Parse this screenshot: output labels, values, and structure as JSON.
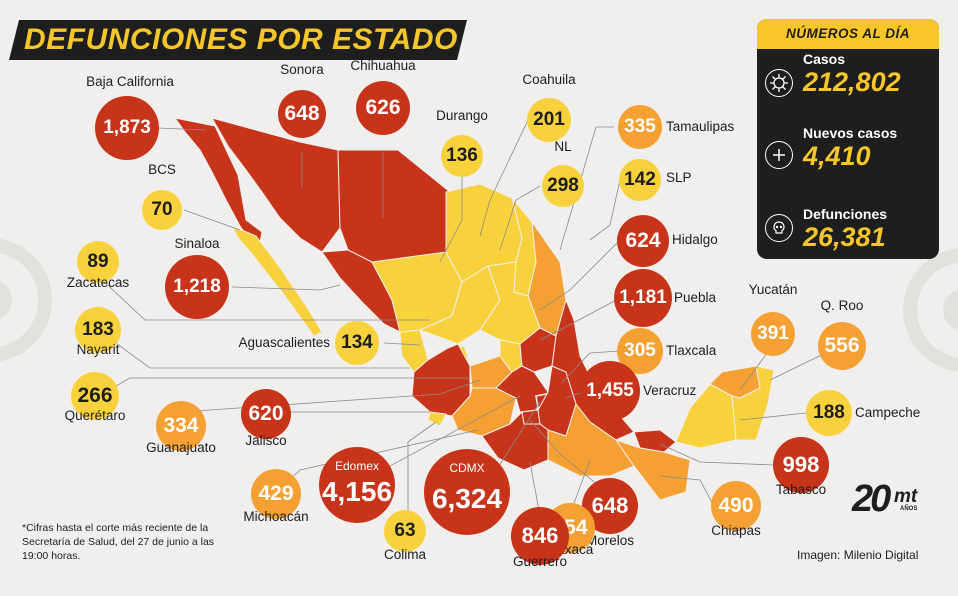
{
  "title": "DEFUNCIONES POR ESTADO",
  "colors": {
    "dark_red": "#c8341a",
    "orange": "#f5a033",
    "yellow": "#f8d23c",
    "panel_bg": "#1e1e1e",
    "accent": "#f7c62b"
  },
  "panel": {
    "header": "NÚMEROS AL DÍA",
    "stats": [
      {
        "label": "Casos",
        "value": "212,802",
        "icon": "virus-icon"
      },
      {
        "label": "Nuevos casos",
        "value": "4,410",
        "icon": "plus-icon"
      },
      {
        "label": "Defunciones",
        "value": "26,381",
        "icon": "skull-icon"
      }
    ]
  },
  "states": [
    {
      "name": "Baja California",
      "value": "1,873",
      "level": "dark_red"
    },
    {
      "name": "Sonora",
      "value": "648",
      "level": "dark_red"
    },
    {
      "name": "Chihuahua",
      "value": "626",
      "level": "dark_red"
    },
    {
      "name": "Coahuila",
      "value": "201",
      "level": "yellow"
    },
    {
      "name": "Tamaulipas",
      "value": "335",
      "level": "orange"
    },
    {
      "name": "Durango",
      "value": "136",
      "level": "yellow"
    },
    {
      "name": "NL",
      "value": "298",
      "level": "yellow"
    },
    {
      "name": "SLP",
      "value": "142",
      "level": "yellow"
    },
    {
      "name": "BCS",
      "value": "70",
      "level": "yellow"
    },
    {
      "name": "Hidalgo",
      "value": "624",
      "level": "dark_red"
    },
    {
      "name": "Sinaloa",
      "value": "1,218",
      "level": "dark_red"
    },
    {
      "name": "Zacatecas",
      "value": "89",
      "level": "yellow"
    },
    {
      "name": "Puebla",
      "value": "1,181",
      "level": "dark_red"
    },
    {
      "name": "Yucatán",
      "value": "391",
      "level": "orange"
    },
    {
      "name": "Q. Roo",
      "value": "556",
      "level": "orange"
    },
    {
      "name": "Nayarit",
      "value": "183",
      "level": "yellow"
    },
    {
      "name": "Aguascalientes",
      "value": "134",
      "level": "yellow"
    },
    {
      "name": "Tlaxcala",
      "value": "305",
      "level": "orange"
    },
    {
      "name": "Querétaro",
      "value": "266",
      "level": "yellow"
    },
    {
      "name": "Veracruz",
      "value": "1,455",
      "level": "dark_red"
    },
    {
      "name": "Campeche",
      "value": "188",
      "level": "yellow"
    },
    {
      "name": "Guanajuato",
      "value": "334",
      "level": "orange"
    },
    {
      "name": "Jalisco",
      "value": "620",
      "level": "dark_red"
    },
    {
      "name": "Tabasco",
      "value": "998",
      "level": "dark_red"
    },
    {
      "name": "Edomex",
      "value": "4,156",
      "level": "dark_red"
    },
    {
      "name": "CDMX",
      "value": "6,324",
      "level": "dark_red"
    },
    {
      "name": "Michoacán",
      "value": "429",
      "level": "orange"
    },
    {
      "name": "Colima",
      "value": "63",
      "level": "yellow"
    },
    {
      "name": "Morelos",
      "value": "648",
      "level": "dark_red"
    },
    {
      "name": "Oaxaca",
      "value": "554",
      "level": "orange"
    },
    {
      "name": "Chiapas",
      "value": "490",
      "level": "orange"
    },
    {
      "name": "Guerrero",
      "value": "846",
      "level": "dark_red"
    }
  ],
  "footnote": "*Cifras hasta el corte más reciente de la Secretaría de Salud, del 27 de junio a las 19:00 horas.",
  "credit": "Imagen: Milenio Digital",
  "logo": {
    "number": "20",
    "brand": "mt",
    "sub": "AÑOS"
  }
}
